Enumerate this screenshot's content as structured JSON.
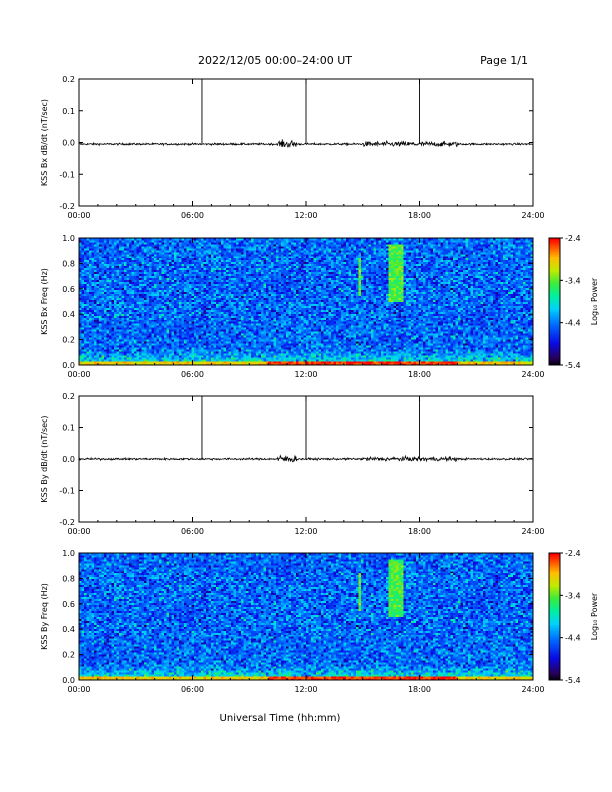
{
  "header": {
    "title": "2022/12/05  00:00–24:00 UT",
    "page": "Page 1/1"
  },
  "x_axis_label": "Universal Time (hh:mm)",
  "colorbar_label": "Log₁₀ Power",
  "colorbar_ticks": [
    "-2.4",
    "-3.4",
    "-4.4",
    "-5.4"
  ],
  "chart_data": [
    {
      "type": "line",
      "name": "bx-timeseries",
      "ylabel": "KSS Bx dB/dt (nT/sec)",
      "ylim": [
        -0.2,
        0.2
      ],
      "yticks": [
        "0.2",
        "0.1",
        "0.0",
        "-0.1",
        "-0.2"
      ],
      "xticks": [
        "00:00",
        "06:00",
        "12:00",
        "18:00",
        "24:00"
      ],
      "xlim_hours": [
        0,
        24
      ],
      "baseline": -0.005,
      "spikes": [
        {
          "hour": 6.5,
          "top": 0.2
        },
        {
          "hour": 12.0,
          "top": 0.2
        },
        {
          "hour": 18.0,
          "top": 0.2
        }
      ],
      "activity": [
        {
          "from": 10.5,
          "to": 11.5,
          "level": 0.012
        },
        {
          "from": 15.0,
          "to": 20.0,
          "level": 0.008
        }
      ]
    },
    {
      "type": "heatmap",
      "name": "bx-spectrogram",
      "ylabel": "KSS Bx Freq (Hz)",
      "ylim": [
        0.0,
        1.0
      ],
      "yticks": [
        "1.0",
        "0.8",
        "0.6",
        "0.4",
        "0.2",
        "0.0"
      ],
      "xticks": [
        "00:00",
        "06:00",
        "12:00",
        "18:00",
        "24:00"
      ],
      "xlim_hours": [
        0,
        24
      ],
      "color_range": [
        -5.4,
        -2.4
      ],
      "features": [
        {
          "kind": "low-frequency-band",
          "freq_max": 0.12,
          "peak_power": -3.0
        },
        {
          "kind": "vertical-line",
          "hour": 14.8,
          "freq_min": 0.55,
          "freq_max": 0.85,
          "power": -3.4
        },
        {
          "kind": "burst",
          "hour_from": 16.3,
          "hour_to": 17.2,
          "freq_min": 0.5,
          "freq_max": 0.95,
          "power": -3.3
        }
      ]
    },
    {
      "type": "line",
      "name": "by-timeseries",
      "ylabel": "KSS By dB/dt (nT/sec)",
      "ylim": [
        -0.2,
        0.2
      ],
      "yticks": [
        "0.2",
        "0.1",
        "0.0",
        "-0.1",
        "-0.2"
      ],
      "xticks": [
        "00:00",
        "06:00",
        "12:00",
        "18:00",
        "24:00"
      ],
      "xlim_hours": [
        0,
        24
      ],
      "baseline": 0.0,
      "spikes": [
        {
          "hour": 6.5,
          "top": 0.2
        },
        {
          "hour": 12.0,
          "top": 0.2
        },
        {
          "hour": 18.0,
          "top": 0.2
        }
      ],
      "activity": [
        {
          "from": 10.5,
          "to": 11.5,
          "level": 0.012
        },
        {
          "from": 15.0,
          "to": 20.0,
          "level": 0.007
        }
      ]
    },
    {
      "type": "heatmap",
      "name": "by-spectrogram",
      "ylabel": "KSS By Freq (Hz)",
      "ylim": [
        0.0,
        1.0
      ],
      "yticks": [
        "1.0",
        "0.8",
        "0.6",
        "0.4",
        "0.2",
        "0.0"
      ],
      "xticks": [
        "00:00",
        "06:00",
        "12:00",
        "18:00",
        "24:00"
      ],
      "xlim_hours": [
        0,
        24
      ],
      "color_range": [
        -5.4,
        -2.4
      ],
      "features": [
        {
          "kind": "low-frequency-band",
          "freq_max": 0.12,
          "peak_power": -3.0
        },
        {
          "kind": "vertical-line",
          "hour": 14.8,
          "freq_min": 0.55,
          "freq_max": 0.85,
          "power": -3.4
        },
        {
          "kind": "burst",
          "hour_from": 16.3,
          "hour_to": 17.2,
          "freq_min": 0.5,
          "freq_max": 0.95,
          "power": -3.3
        }
      ]
    }
  ]
}
